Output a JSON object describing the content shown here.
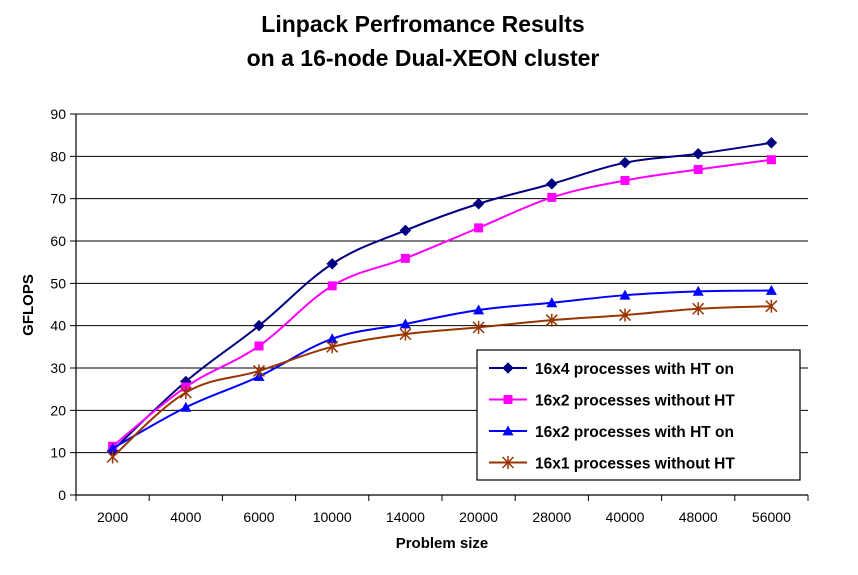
{
  "chart_data": {
    "type": "line",
    "title": "Linpack Perfromance Results",
    "subtitle": "on a 16-node Dual-XEON cluster",
    "xlabel": "Problem size",
    "ylabel": "GFLOPS",
    "categories": [
      "2000",
      "4000",
      "6000",
      "10000",
      "14000",
      "20000",
      "28000",
      "40000",
      "48000",
      "56000"
    ],
    "ylim": [
      0,
      90
    ],
    "yticks": [
      0,
      10,
      20,
      30,
      40,
      50,
      60,
      70,
      80,
      90
    ],
    "grid": "horizontal",
    "legend_position": "bottom-right",
    "series": [
      {
        "name": "16x4 processes with HT on",
        "color": "#000080",
        "marker": "diamond",
        "values": [
          10.5,
          26.8,
          40.0,
          54.6,
          62.5,
          68.8,
          73.5,
          78.5,
          80.6,
          83.2
        ]
      },
      {
        "name": "16x2 processes without HT",
        "color": "#ff00ff",
        "marker": "square",
        "values": [
          11.5,
          25.5,
          35.2,
          49.4,
          55.9,
          63.1,
          70.3,
          74.3,
          76.9,
          79.2
        ]
      },
      {
        "name": "16x2 processes with HT on",
        "color": "#0000ff",
        "marker": "triangle",
        "values": [
          11.0,
          20.7,
          28.0,
          36.9,
          40.4,
          43.7,
          45.4,
          47.2,
          48.1,
          48.3
        ]
      },
      {
        "name": "16x1 processes without HT",
        "color": "#993300",
        "marker": "asterisk",
        "values": [
          9.0,
          24.2,
          29.3,
          35.0,
          38.0,
          39.6,
          41.3,
          42.5,
          44.0,
          44.6
        ]
      }
    ]
  }
}
